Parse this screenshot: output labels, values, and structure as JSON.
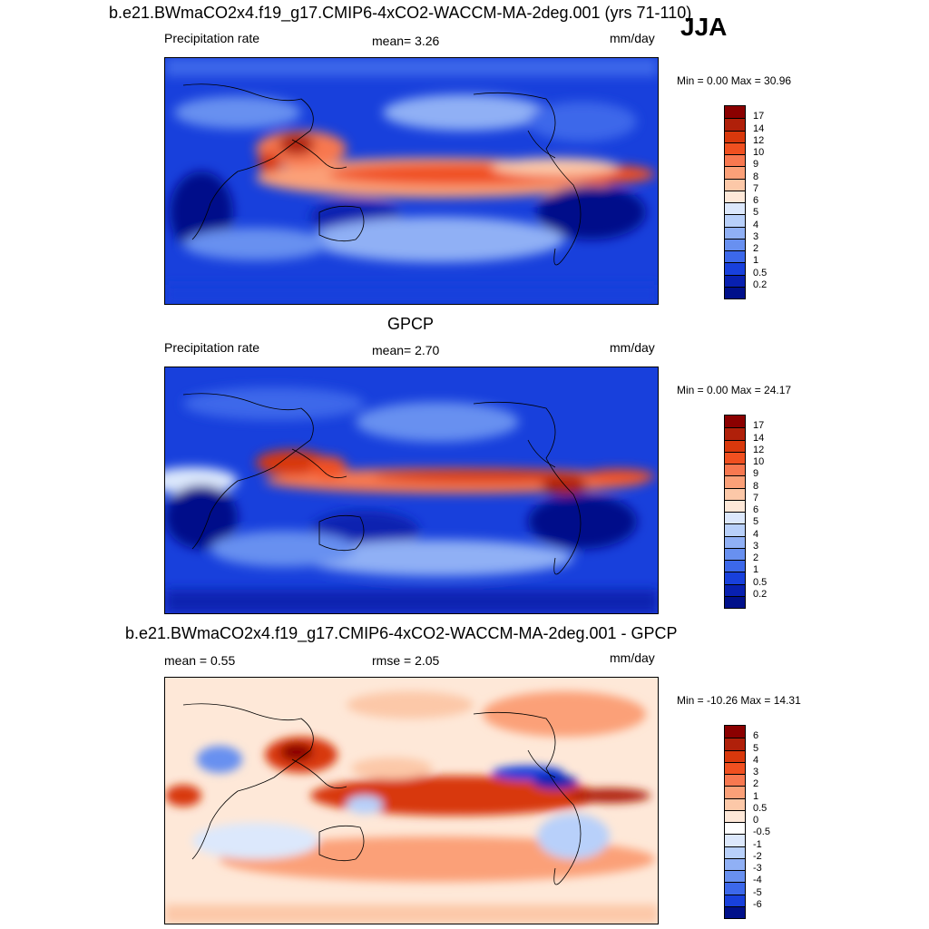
{
  "season": "JJA",
  "panels": [
    {
      "title": "b.e21.BWmaCO2x4.f19_g17.CMIP6-4xCO2-WACCM-MA-2deg.001 (yrs 71-110)",
      "left_label": "Precipitation rate",
      "center_label": "mean=   3.26",
      "units": "mm/day",
      "minmax": "Min =   0.00 Max =  30.96",
      "colorbar_ticks": [
        "17",
        "14",
        "12",
        "10",
        "9",
        "8",
        "7",
        "6",
        "5",
        "4",
        "3",
        "2",
        "1",
        "0.5",
        "0.2"
      ]
    },
    {
      "title": "GPCP",
      "left_label": "Precipitation rate",
      "center_label": "mean=   2.70",
      "units": "mm/day",
      "minmax": "Min =   0.00 Max =  24.17",
      "colorbar_ticks": [
        "17",
        "14",
        "12",
        "10",
        "9",
        "8",
        "7",
        "6",
        "5",
        "4",
        "3",
        "2",
        "1",
        "0.5",
        "0.2"
      ]
    },
    {
      "title": "b.e21.BWmaCO2x4.f19_g17.CMIP6-4xCO2-WACCM-MA-2deg.001 - GPCP",
      "left_label": "mean =   0.55",
      "center_label": "rmse =   2.05",
      "units": "mm/day",
      "minmax": "Min = -10.26 Max =  14.31",
      "colorbar_ticks": [
        "6",
        "5",
        "4",
        "3",
        "2",
        "1",
        "0.5",
        "0",
        "-0.5",
        "-1",
        "-2",
        "-3",
        "-4",
        "-5",
        "-6"
      ]
    }
  ],
  "colors": {
    "abs_scale": [
      "#8b0000",
      "#b0200a",
      "#d8380c",
      "#f05020",
      "#f87850",
      "#fba078",
      "#fcc8a8",
      "#fee8d8",
      "#dce8fc",
      "#b8d0fa",
      "#90b0f5",
      "#6890f0",
      "#3c68ea",
      "#1840dc",
      "#0820b0",
      "#00108a"
    ],
    "diff_scale": [
      "#8b0000",
      "#b0200a",
      "#d8380c",
      "#f05020",
      "#f87850",
      "#fba078",
      "#fcc8a8",
      "#fee8d8",
      "#ffffff",
      "#dce8fc",
      "#b8d0fa",
      "#90b0f5",
      "#6890f0",
      "#3c68ea",
      "#1840dc",
      "#00108a"
    ]
  }
}
